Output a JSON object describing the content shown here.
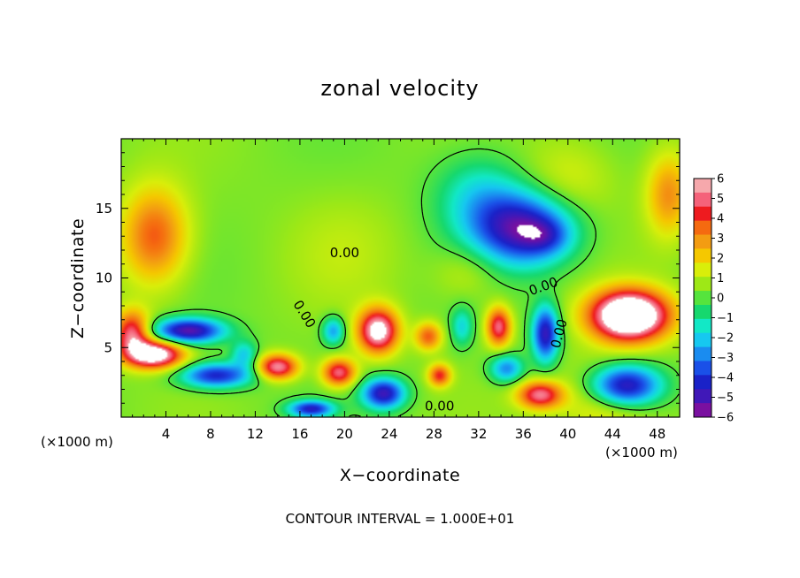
{
  "chart_data": {
    "type": "heatmap",
    "title": "zonal velocity",
    "xlabel": "X−coordinate",
    "ylabel": "Z−coordinate",
    "x_unit_note": "(×1000 m)",
    "y_unit_note": "(×1000 m)",
    "xlim": [
      0,
      50
    ],
    "ylim": [
      0,
      20
    ],
    "x_ticks": [
      4,
      8,
      12,
      16,
      20,
      24,
      28,
      32,
      36,
      40,
      44,
      48
    ],
    "x_tick_labels": [
      "4",
      "8",
      "12",
      "16",
      "20",
      "24",
      "28",
      "32",
      "36",
      "40",
      "44",
      "48"
    ],
    "y_ticks": [
      5,
      10,
      15
    ],
    "y_tick_labels": [
      "5",
      "10",
      "15"
    ],
    "colorbar": {
      "min": -6,
      "max": 6,
      "tick_labels": [
        "6",
        "5",
        "4",
        "3",
        "2",
        "1",
        "0",
        "−1",
        "−2",
        "−3",
        "−4",
        "−5",
        "−6"
      ],
      "colors": [
        "#f6a8ac",
        "#f5627a",
        "#ee1b1f",
        "#f56a10",
        "#f39c12",
        "#f5c800",
        "#d9ee0a",
        "#9ee816",
        "#55e43d",
        "#16d86e",
        "#12e8c6",
        "#16c8f0",
        "#1a8cf0",
        "#1a50e8",
        "#1a22c8",
        "#4018b8",
        "#7a10a0"
      ]
    },
    "contour_labels": [
      {
        "text": "0.00",
        "x": 16.4,
        "y": 7.4,
        "rotate": 58
      },
      {
        "text": "0.00",
        "x": 20.0,
        "y": 11.8,
        "rotate": 0
      },
      {
        "text": "0.00",
        "x": 37.8,
        "y": 9.4,
        "rotate": -20
      },
      {
        "text": "0.00",
        "x": 39.2,
        "y": 6.0,
        "rotate": -75
      },
      {
        "text": "0.00",
        "x": 28.5,
        "y": 0.8,
        "rotate": 0
      }
    ],
    "features": [
      {
        "x": 3,
        "y": 13,
        "v": 3.6,
        "sx": 3.0,
        "sy": 3.5
      },
      {
        "x": 1,
        "y": 6,
        "v": 5.2,
        "sx": 1.6,
        "sy": 1.6
      },
      {
        "x": 40,
        "y": 17,
        "v": 1.2,
        "sx": 4,
        "sy": 3
      },
      {
        "x": 49,
        "y": 16,
        "v": 2.8,
        "sx": 2,
        "sy": 3
      },
      {
        "x": 36,
        "y": 13.5,
        "v": -5.8,
        "sx": 4.5,
        "sy": 2.6
      },
      {
        "x": 38,
        "y": 13,
        "v": -1.5,
        "sx": 2,
        "sy": 1.2
      },
      {
        "x": 32,
        "y": 16,
        "v": -2.0,
        "sx": 4,
        "sy": 3
      },
      {
        "x": 20,
        "y": 12,
        "v": 0.6,
        "sx": 5,
        "sy": 4
      },
      {
        "x": 6,
        "y": 6.2,
        "v": -6.0,
        "sx": 3.2,
        "sy": 0.9
      },
      {
        "x": 3,
        "y": 4.5,
        "v": 7.0,
        "sx": 2.5,
        "sy": 1.0
      },
      {
        "x": 8.5,
        "y": 3,
        "v": -5.0,
        "sx": 3.2,
        "sy": 0.9
      },
      {
        "x": 14,
        "y": 3.6,
        "v": 5.5,
        "sx": 1.8,
        "sy": 0.9
      },
      {
        "x": 11,
        "y": 4.5,
        "v": -2.5,
        "sx": 1.2,
        "sy": 1.0
      },
      {
        "x": 19,
        "y": 6.2,
        "v": -3.2,
        "sx": 1.0,
        "sy": 1.0
      },
      {
        "x": 23,
        "y": 6.2,
        "v": 6.5,
        "sx": 1.8,
        "sy": 1.6
      },
      {
        "x": 19.5,
        "y": 3.2,
        "v": 5.0,
        "sx": 1.5,
        "sy": 1.0
      },
      {
        "x": 23.5,
        "y": 1.7,
        "v": -5.5,
        "sx": 1.9,
        "sy": 1.1
      },
      {
        "x": 17,
        "y": 0.6,
        "v": -5.0,
        "sx": 2.0,
        "sy": 0.6
      },
      {
        "x": 28.5,
        "y": 3.0,
        "v": 4.0,
        "sx": 1.0,
        "sy": 0.8
      },
      {
        "x": 27.5,
        "y": 5.8,
        "v": 3.5,
        "sx": 1.2,
        "sy": 1.0
      },
      {
        "x": 30.5,
        "y": 6.5,
        "v": -2.2,
        "sx": 1.0,
        "sy": 1.4
      },
      {
        "x": 33.8,
        "y": 6.5,
        "v": 5.0,
        "sx": 1.1,
        "sy": 1.4
      },
      {
        "x": 34.5,
        "y": 3.5,
        "v": -3.5,
        "sx": 1.5,
        "sy": 1.0
      },
      {
        "x": 38,
        "y": 6.0,
        "v": -5.5,
        "sx": 1.2,
        "sy": 2.0
      },
      {
        "x": 37.5,
        "y": 1.6,
        "v": 5.0,
        "sx": 2.0,
        "sy": 1.0
      },
      {
        "x": 45.5,
        "y": 7.3,
        "v": 9.0,
        "sx": 3.5,
        "sy": 1.8
      },
      {
        "x": 45,
        "y": 2.2,
        "v": -8.0,
        "sx": 3.3,
        "sy": 1.6
      },
      {
        "x": 44,
        "y": 1.6,
        "v": 3.5,
        "sx": 4.0,
        "sy": 2.4
      },
      {
        "x": 31,
        "y": 10.5,
        "v": 1.0,
        "sx": 3,
        "sy": 2
      }
    ]
  }
}
